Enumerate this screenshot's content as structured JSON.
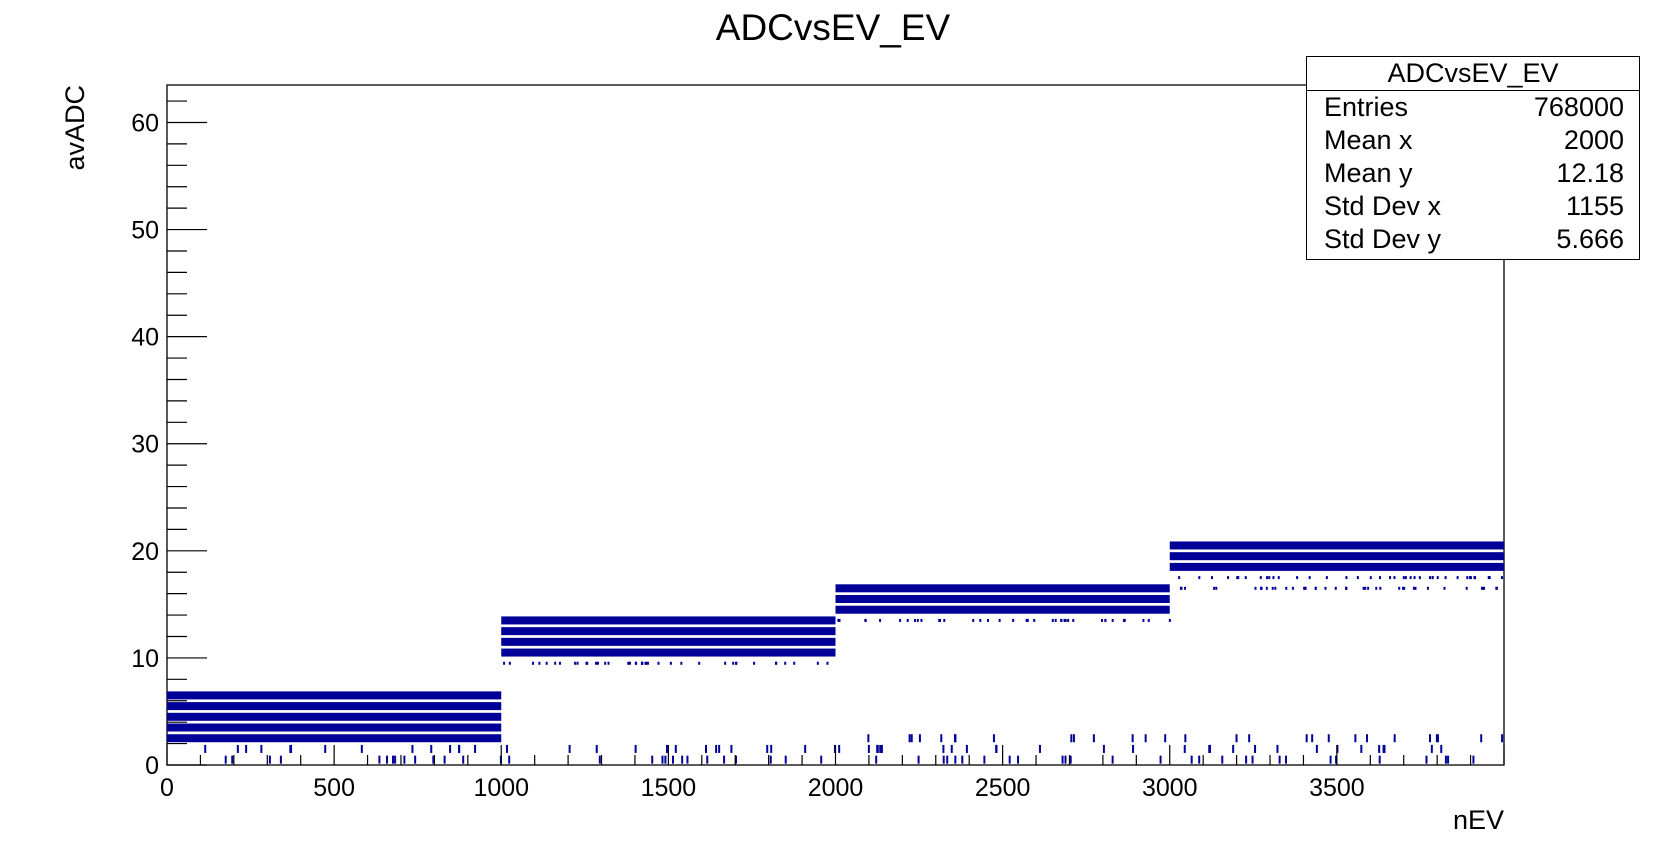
{
  "chart_data": {
    "type": "scatter",
    "title": "ADCvsEV_EV",
    "xlabel": "nEV",
    "ylabel": "avADC",
    "xlim": [
      0,
      4000
    ],
    "ylim": [
      0,
      63.5
    ],
    "x_ticks": [
      0,
      500,
      1000,
      1500,
      2000,
      2500,
      3000,
      3500
    ],
    "y_ticks": [
      0,
      10,
      20,
      30,
      40,
      50,
      60
    ],
    "grid": false,
    "marker_color": "#000099",
    "series": [
      {
        "segments": [
          {
            "x_range": [
              0,
              1000
            ],
            "y_min": 2,
            "y_max": 6,
            "dense_levels": [
              2,
              3,
              4,
              5,
              6
            ],
            "sparse_levels": [],
            "low_levels": [
              0,
              1
            ]
          },
          {
            "x_range": [
              1000,
              2000
            ],
            "y_min": 10,
            "y_max": 13,
            "dense_levels": [
              10,
              11,
              12,
              13
            ],
            "sparse_levels": [
              9
            ],
            "low_levels": [
              0,
              1
            ]
          },
          {
            "x_range": [
              2000,
              3000
            ],
            "y_min": 14,
            "y_max": 16,
            "dense_levels": [
              14,
              15,
              16
            ],
            "sparse_levels": [
              13
            ],
            "low_levels": [
              0,
              1,
              2
            ]
          },
          {
            "x_range": [
              3000,
              4000
            ],
            "y_min": 18,
            "y_max": 20,
            "dense_levels": [
              18,
              19,
              20
            ],
            "sparse_levels": [
              16,
              17
            ],
            "low_levels": [
              0,
              1,
              2
            ]
          }
        ]
      }
    ],
    "stats_box": {
      "title": "ADCvsEV_EV",
      "rows": [
        {
          "label": "Entries",
          "value": "768000"
        },
        {
          "label": "Mean x",
          "value": "2000"
        },
        {
          "label": "Mean y",
          "value": "12.18"
        },
        {
          "label": "Std Dev x",
          "value": "1155"
        },
        {
          "label": "Std Dev y",
          "value": "5.666"
        }
      ],
      "placement": "top-right"
    }
  }
}
